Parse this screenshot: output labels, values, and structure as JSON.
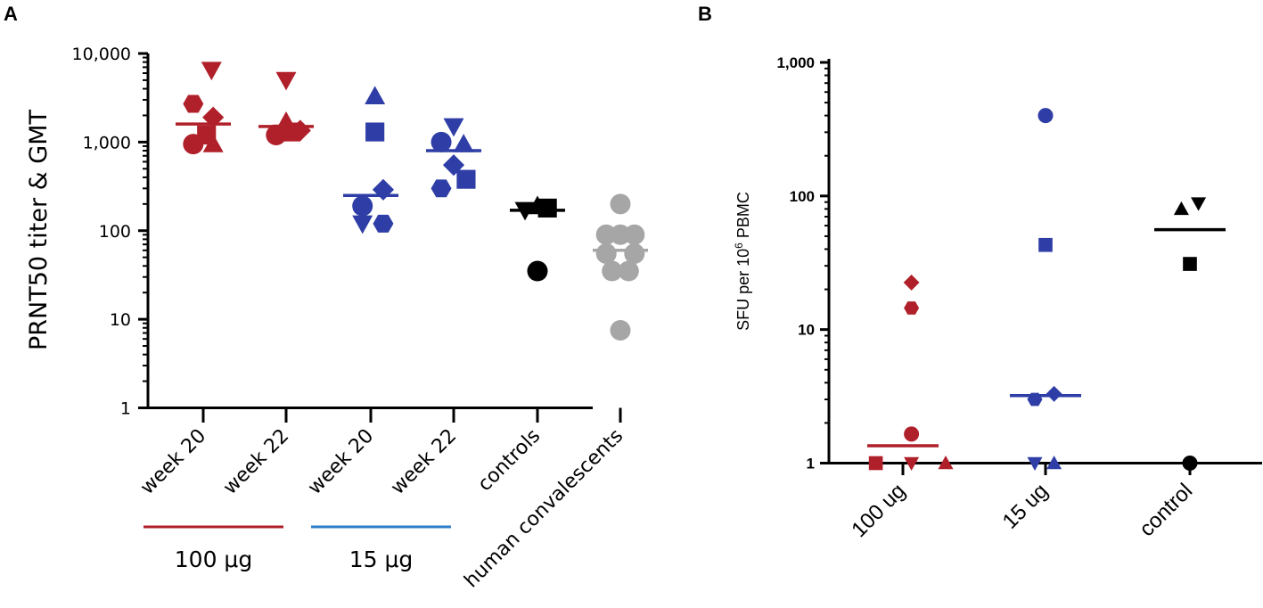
{
  "colors": {
    "red": "#b0202a",
    "blue": "#2e3ea6",
    "black": "#000000",
    "grey": "#a6a6a6",
    "light_blue": "#2f7fc8"
  },
  "chart_data": [
    {
      "panel": "A",
      "type": "scatter",
      "ylabel": "PRNT50 titer & GMT",
      "yscale": "log",
      "ylim": [
        1,
        10000
      ],
      "yticks": [
        {
          "value": 1,
          "label": "1"
        },
        {
          "value": 10,
          "label": "10"
        },
        {
          "value": 100,
          "label": "100"
        },
        {
          "value": 1000,
          "label": "1,000"
        },
        {
          "value": 10000,
          "label": "10,000"
        }
      ],
      "categories": [
        "week 20",
        "week 22",
        "week 20",
        "week 22",
        "controls",
        "human convalescents"
      ],
      "dose_groups": [
        {
          "label": "100 μg",
          "categories": [
            0,
            1
          ],
          "color": "red"
        },
        {
          "label": "15 μg",
          "categories": [
            2,
            3
          ],
          "color": "light_blue"
        }
      ],
      "groups": [
        {
          "category": 0,
          "color": "red",
          "gmt": 1600,
          "points": [
            {
              "value": 6500,
              "shape": "triangle-down",
              "offset": 0.1
            },
            {
              "value": 2700,
              "shape": "hexagon",
              "offset": -0.12
            },
            {
              "value": 1900,
              "shape": "diamond",
              "offset": 0.12
            },
            {
              "value": 1200,
              "shape": "square",
              "offset": 0.04
            },
            {
              "value": 950,
              "shape": "circle",
              "offset": -0.12
            },
            {
              "value": 950,
              "shape": "triangle-up",
              "offset": 0.12
            }
          ]
        },
        {
          "category": 1,
          "color": "red",
          "gmt": 1500,
          "points": [
            {
              "value": 5000,
              "shape": "triangle-down",
              "offset": 0.0
            },
            {
              "value": 1700,
              "shape": "triangle-up",
              "offset": 0.0
            },
            {
              "value": 1350,
              "shape": "diamond",
              "offset": 0.17
            },
            {
              "value": 1300,
              "shape": "square",
              "offset": 0.06
            },
            {
              "value": 1250,
              "shape": "hexagon",
              "offset": -0.1
            },
            {
              "value": 1200,
              "shape": "circle",
              "offset": -0.12
            }
          ]
        },
        {
          "category": 2,
          "color": "blue",
          "gmt": 250,
          "points": [
            {
              "value": 3300,
              "shape": "triangle-up",
              "offset": 0.05
            },
            {
              "value": 1300,
              "shape": "square",
              "offset": 0.05
            },
            {
              "value": 290,
              "shape": "diamond",
              "offset": 0.15
            },
            {
              "value": 190,
              "shape": "circle",
              "offset": -0.1
            },
            {
              "value": 120,
              "shape": "triangle-down",
              "offset": -0.1
            },
            {
              "value": 120,
              "shape": "hexagon",
              "offset": 0.15
            }
          ]
        },
        {
          "category": 3,
          "color": "blue",
          "gmt": 800,
          "points": [
            {
              "value": 1500,
              "shape": "triangle-down",
              "offset": 0.0
            },
            {
              "value": 1000,
              "shape": "circle",
              "offset": -0.15
            },
            {
              "value": 950,
              "shape": "triangle-up",
              "offset": 0.12
            },
            {
              "value": 550,
              "shape": "diamond",
              "offset": 0.0
            },
            {
              "value": 380,
              "shape": "square",
              "offset": 0.15
            },
            {
              "value": 300,
              "shape": "hexagon",
              "offset": -0.15
            }
          ]
        },
        {
          "category": 4,
          "color": "black",
          "gmt": 170,
          "points": [
            {
              "value": 170,
              "shape": "triangle-down",
              "offset": -0.15
            },
            {
              "value": 190,
              "shape": "triangle-up",
              "offset": 0.0
            },
            {
              "value": 180,
              "shape": "square",
              "offset": 0.12
            },
            {
              "value": 35,
              "shape": "circle",
              "offset": 0.0
            }
          ]
        },
        {
          "category": 5,
          "color": "grey",
          "gmt": 60,
          "points": [
            {
              "value": 200,
              "shape": "circle",
              "offset": 0.0
            },
            {
              "value": 90,
              "shape": "circle",
              "offset": -0.17
            },
            {
              "value": 90,
              "shape": "circle",
              "offset": 0.0
            },
            {
              "value": 90,
              "shape": "circle",
              "offset": 0.17
            },
            {
              "value": 55,
              "shape": "circle",
              "offset": -0.17
            },
            {
              "value": 55,
              "shape": "circle",
              "offset": 0.17
            },
            {
              "value": 35,
              "shape": "circle",
              "offset": -0.1
            },
            {
              "value": 35,
              "shape": "circle",
              "offset": 0.1
            },
            {
              "value": 7.5,
              "shape": "circle",
              "offset": 0.0
            }
          ]
        }
      ]
    },
    {
      "panel": "B",
      "type": "scatter",
      "ylabel_prefix": "SFU per 10",
      "ylabel_sup": "6",
      "ylabel_suffix": " PBMC",
      "yscale": "log",
      "ylim": [
        1,
        1000
      ],
      "yticks": [
        {
          "value": 1,
          "label": "1"
        },
        {
          "value": 10,
          "label": "10"
        },
        {
          "value": 100,
          "label": "100"
        },
        {
          "value": 1000,
          "label": "1,000"
        }
      ],
      "categories": [
        "100 ug",
        "15 ug",
        "control"
      ],
      "groups": [
        {
          "category": 0,
          "color": "red",
          "median": 1.35,
          "points": [
            {
              "value": 22.5,
              "shape": "diamond",
              "offset": 0.12
            },
            {
              "value": 14.5,
              "shape": "hexagon",
              "offset": 0.12
            },
            {
              "value": 1.65,
              "shape": "circle",
              "offset": 0.12
            },
            {
              "value": 1.0,
              "shape": "square",
              "offset": -0.38
            },
            {
              "value": 1.0,
              "shape": "triangle-down",
              "offset": 0.12
            },
            {
              "value": 1.0,
              "shape": "triangle-up",
              "offset": 0.6
            }
          ]
        },
        {
          "category": 1,
          "color": "blue",
          "median": 3.2,
          "points": [
            {
              "value": 400,
              "shape": "circle",
              "offset": 0.0
            },
            {
              "value": 43,
              "shape": "square",
              "offset": 0.0
            },
            {
              "value": 3.3,
              "shape": "diamond",
              "offset": 0.12
            },
            {
              "value": 3.0,
              "shape": "hexagon",
              "offset": -0.15
            },
            {
              "value": 1.0,
              "shape": "triangle-down",
              "offset": -0.15
            },
            {
              "value": 1.0,
              "shape": "triangle-up",
              "offset": 0.12
            }
          ]
        },
        {
          "category": 2,
          "color": "black",
          "median": 56,
          "points": [
            {
              "value": 88,
              "shape": "triangle-down",
              "offset": 0.12
            },
            {
              "value": 80,
              "shape": "triangle-up",
              "offset": -0.12
            },
            {
              "value": 31,
              "shape": "square",
              "offset": 0.0
            },
            {
              "value": 1.0,
              "shape": "circle",
              "offset": 0.0
            }
          ]
        }
      ]
    }
  ]
}
